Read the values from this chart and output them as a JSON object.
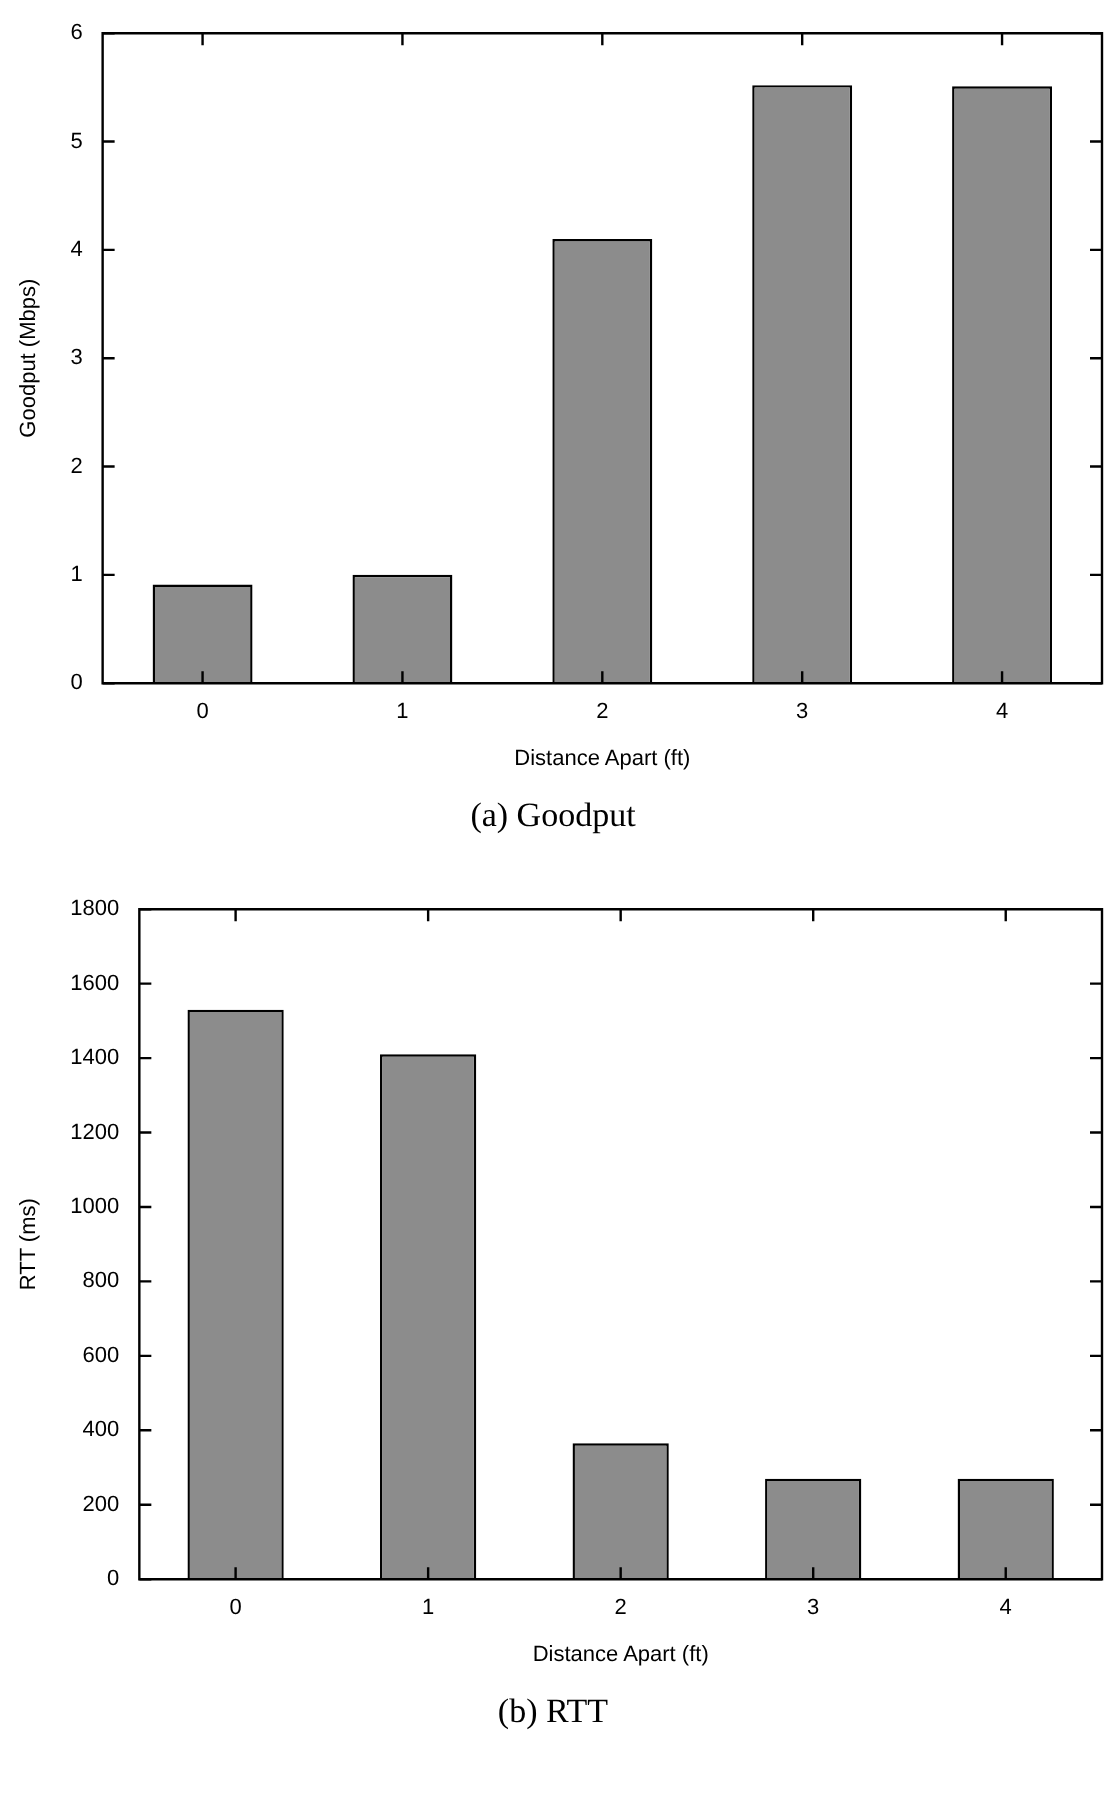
{
  "chart_data": [
    {
      "type": "bar",
      "title": "(a)  Goodput",
      "xlabel": "Distance Apart (ft)",
      "ylabel": "Goodput (Mbps)",
      "categories": [
        "0",
        "1",
        "2",
        "3",
        "4"
      ],
      "series": [
        {
          "color": "#8c8c8c",
          "values": [
            0.91,
            1.0,
            4.1,
            5.52,
            5.51
          ]
        }
      ],
      "ylim": [
        0,
        6
      ],
      "yticks": [
        0,
        1,
        2,
        3,
        4,
        5,
        6
      ],
      "legend": false
    },
    {
      "type": "bar",
      "title": "(b)  RTT",
      "xlabel": "Distance Apart (ft)",
      "ylabel": "RTT (ms)",
      "categories": [
        "0",
        "1",
        "2",
        "3",
        "4"
      ],
      "series": [
        {
          "color": "#8c8c8c",
          "values": [
            1530,
            1410,
            365,
            270,
            270
          ]
        }
      ],
      "ylim": [
        0,
        1800
      ],
      "yticks": [
        0,
        200,
        400,
        600,
        800,
        1000,
        1200,
        1400,
        1600,
        1800
      ],
      "legend": false
    }
  ]
}
